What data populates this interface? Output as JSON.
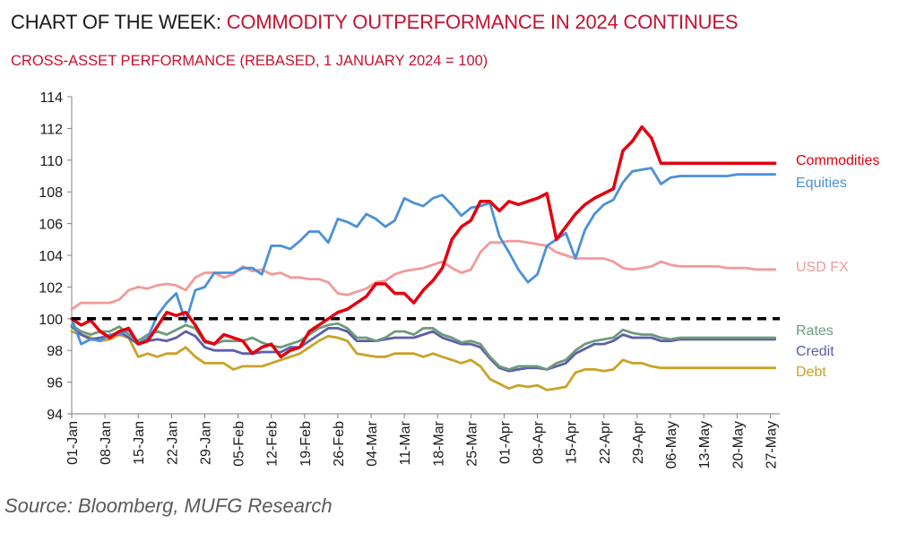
{
  "header": {
    "title_lead": "CHART OF THE WEEK:",
    "title_accent": "COMMODITY OUTPERFORMANCE IN 2024 CONTINUES",
    "subtitle": "CROSS-ASSET PERFORMANCE (REBASED, 1 JANUARY 2024 = 100)"
  },
  "source": "Source: Bloomberg,  MUFG Research",
  "chart_data": {
    "type": "line",
    "x_tick_labels": [
      "01-Jan",
      "08-Jan",
      "15-Jan",
      "22-Jan",
      "29-Jan",
      "05-Feb",
      "12-Feb",
      "19-Feb",
      "26-Feb",
      "04-Mar",
      "11-Mar",
      "18-Mar",
      "25-Mar",
      "01-Apr",
      "08-Apr",
      "15-Apr",
      "22-Apr",
      "29-Apr",
      "06-May",
      "13-May",
      "20-May",
      "27-May"
    ],
    "x_range_days": [
      0,
      149
    ],
    "ylim": [
      94,
      114
    ],
    "y_ticks": [
      94,
      96,
      98,
      100,
      102,
      104,
      106,
      108,
      110,
      112,
      114
    ],
    "grid": false,
    "reference_line": {
      "y": 100,
      "style": "dashed",
      "color": "#000000"
    },
    "x_unit": "days since 01-Jan-2024",
    "series": [
      {
        "name": "Commodities",
        "color": "#e3000f",
        "width": 3.5,
        "x": [
          0,
          2,
          4,
          6,
          8,
          10,
          12,
          14,
          16,
          18,
          20,
          22,
          24,
          26,
          28,
          30,
          32,
          34,
          36,
          38,
          40,
          42,
          44,
          46,
          48,
          50,
          52,
          54,
          56,
          58,
          60,
          62,
          64,
          66,
          68,
          70,
          72,
          74,
          76,
          78,
          80,
          82,
          84,
          86,
          88,
          90,
          92,
          94,
          96,
          98,
          100,
          102,
          104,
          106,
          108,
          110,
          112,
          114,
          116,
          118,
          120,
          122,
          124,
          126,
          128,
          130,
          132,
          134,
          136,
          138,
          140,
          142,
          144,
          146,
          148
        ],
        "y": [
          100,
          99.6,
          99.9,
          99.2,
          98.8,
          99.2,
          99.4,
          98.4,
          98.6,
          99.5,
          100.4,
          100.2,
          100.4,
          99.6,
          98.6,
          98.4,
          99,
          98.8,
          98.6,
          97.8,
          98.2,
          98.4,
          97.6,
          98,
          98.2,
          99.2,
          99.6,
          100,
          100.4,
          100.6,
          101,
          101.4,
          102.2,
          102.2,
          101.6,
          101.6,
          101,
          101.8,
          102.4,
          103.2,
          105,
          105.8,
          106.2,
          107.4,
          107.4,
          106.8,
          107.4,
          107.2,
          107.4,
          107.6,
          107.9,
          105,
          105.8,
          106.6,
          107.2,
          107.6,
          107.9,
          108.2,
          110.6,
          111.2,
          112.1,
          111.4,
          109.8,
          109.8,
          109.8,
          109.8,
          109.8,
          109.8,
          109.8,
          109.8,
          109.8,
          109.8,
          109.8,
          109.8,
          109.8
        ]
      },
      {
        "name": "Equities",
        "color": "#4a90d9",
        "width": 2.8,
        "x": [
          0,
          2,
          4,
          6,
          8,
          10,
          12,
          14,
          16,
          18,
          20,
          22,
          24,
          26,
          28,
          30,
          32,
          34,
          36,
          38,
          40,
          42,
          44,
          46,
          48,
          50,
          52,
          54,
          56,
          58,
          60,
          62,
          64,
          66,
          68,
          70,
          72,
          74,
          76,
          78,
          80,
          82,
          84,
          86,
          88,
          90,
          92,
          94,
          96,
          98,
          100,
          102,
          104,
          106,
          108,
          110,
          112,
          114,
          116,
          118,
          120,
          122,
          124,
          126,
          128,
          130,
          132,
          134,
          136,
          138,
          140,
          142,
          144,
          146,
          148
        ],
        "y": [
          100,
          98.4,
          98.7,
          98.6,
          99,
          99,
          99.3,
          98.4,
          98.8,
          100.2,
          101,
          101.6,
          99.8,
          101.8,
          102,
          102.9,
          102.9,
          102.9,
          103.2,
          103.2,
          102.8,
          104.6,
          104.6,
          104.4,
          104.9,
          105.5,
          105.5,
          104.8,
          106.3,
          106.1,
          105.8,
          106.6,
          106.3,
          105.8,
          106.2,
          107.6,
          107.3,
          107.1,
          107.6,
          107.8,
          107.2,
          106.5,
          107,
          107.1,
          107.3,
          105.2,
          104.2,
          103.1,
          102.3,
          102.8,
          104.6,
          105,
          105.4,
          103.8,
          105.6,
          106.6,
          107.2,
          107.5,
          108.6,
          109.3,
          109.4,
          109.5,
          108.5,
          108.9,
          109,
          109,
          109,
          109,
          109,
          109,
          109.1,
          109.1,
          109.1,
          109.1,
          109.1
        ]
      },
      {
        "name": "USD FX",
        "color": "#f29a9a",
        "width": 2.8,
        "x": [
          0,
          2,
          4,
          6,
          8,
          10,
          12,
          14,
          16,
          18,
          20,
          22,
          24,
          26,
          28,
          30,
          32,
          34,
          36,
          38,
          40,
          42,
          44,
          46,
          48,
          50,
          52,
          54,
          56,
          58,
          60,
          62,
          64,
          66,
          68,
          70,
          72,
          74,
          76,
          78,
          80,
          82,
          84,
          86,
          88,
          90,
          92,
          94,
          96,
          98,
          100,
          102,
          104,
          106,
          108,
          110,
          112,
          114,
          116,
          118,
          120,
          122,
          124,
          126,
          128,
          130,
          132,
          134,
          136,
          138,
          140,
          142,
          144,
          146,
          148
        ],
        "y": [
          100.6,
          101,
          101,
          101,
          101,
          101.2,
          101.8,
          102,
          101.9,
          102.1,
          102.2,
          102.1,
          101.8,
          102.6,
          102.9,
          102.9,
          102.6,
          102.8,
          103.3,
          103,
          103.1,
          102.8,
          102.9,
          102.6,
          102.6,
          102.5,
          102.5,
          102.3,
          101.6,
          101.5,
          101.7,
          101.9,
          102.3,
          102.4,
          102.8,
          103,
          103.1,
          103.2,
          103.4,
          103.6,
          103.2,
          102.9,
          103.1,
          104.2,
          104.8,
          104.8,
          104.9,
          104.9,
          104.8,
          104.7,
          104.6,
          104.2,
          104,
          103.8,
          103.8,
          103.8,
          103.8,
          103.6,
          103.2,
          103.1,
          103.2,
          103.3,
          103.6,
          103.4,
          103.3,
          103.3,
          103.3,
          103.3,
          103.3,
          103.2,
          103.2,
          103.2,
          103.1,
          103.1,
          103.1
        ]
      },
      {
        "name": "Rates",
        "color": "#6f9a7c",
        "width": 2.8,
        "x": [
          0,
          2,
          4,
          6,
          8,
          10,
          12,
          14,
          16,
          18,
          20,
          22,
          24,
          26,
          28,
          30,
          32,
          34,
          36,
          38,
          40,
          42,
          44,
          46,
          48,
          50,
          52,
          54,
          56,
          58,
          60,
          62,
          64,
          66,
          68,
          70,
          72,
          74,
          76,
          78,
          80,
          82,
          84,
          86,
          88,
          90,
          92,
          94,
          96,
          98,
          100,
          102,
          104,
          106,
          108,
          110,
          112,
          114,
          116,
          118,
          120,
          122,
          124,
          126,
          128,
          130,
          132,
          134,
          136,
          138,
          140,
          142,
          144,
          146,
          148
        ],
        "y": [
          99.6,
          99.2,
          99,
          99.2,
          99.2,
          99.5,
          99,
          98.6,
          99,
          99.2,
          99,
          99.3,
          99.6,
          99.4,
          98.5,
          98.4,
          98.6,
          98.6,
          98.6,
          98.8,
          98.5,
          98.3,
          98.2,
          98.4,
          98.6,
          99,
          99.4,
          99.6,
          99.7,
          99.4,
          98.8,
          98.8,
          98.6,
          98.8,
          99.2,
          99.2,
          99,
          99.4,
          99.4,
          99,
          98.8,
          98.5,
          98.6,
          98.4,
          97.6,
          97,
          96.8,
          97,
          97,
          97,
          96.8,
          97.2,
          97.4,
          98,
          98.4,
          98.6,
          98.7,
          98.8,
          99.3,
          99.1,
          99,
          99,
          98.8,
          98.7,
          98.8,
          98.8,
          98.8,
          98.8,
          98.8,
          98.8,
          98.8,
          98.8,
          98.8,
          98.8,
          98.8
        ]
      },
      {
        "name": "Credit",
        "color": "#5b5fa8",
        "width": 2.8,
        "x": [
          0,
          2,
          4,
          6,
          8,
          10,
          12,
          14,
          16,
          18,
          20,
          22,
          24,
          26,
          28,
          30,
          32,
          34,
          36,
          38,
          40,
          42,
          44,
          46,
          48,
          50,
          52,
          54,
          56,
          58,
          60,
          62,
          64,
          66,
          68,
          70,
          72,
          74,
          76,
          78,
          80,
          82,
          84,
          86,
          88,
          90,
          92,
          94,
          96,
          98,
          100,
          102,
          104,
          106,
          108,
          110,
          112,
          114,
          116,
          118,
          120,
          122,
          124,
          126,
          128,
          130,
          132,
          134,
          136,
          138,
          140,
          142,
          144,
          146,
          148
        ],
        "y": [
          99.5,
          99,
          98.7,
          98.8,
          98.9,
          99.2,
          98.8,
          98.4,
          98.6,
          98.7,
          98.6,
          98.8,
          99.2,
          98.9,
          98.2,
          98,
          98,
          98,
          97.8,
          97.8,
          97.9,
          97.9,
          97.9,
          98.2,
          98.2,
          98.6,
          99,
          99.4,
          99.4,
          99.2,
          98.6,
          98.6,
          98.6,
          98.7,
          98.8,
          98.8,
          98.8,
          99,
          99.2,
          98.8,
          98.6,
          98.4,
          98.4,
          98.2,
          97.5,
          96.9,
          96.7,
          96.8,
          96.9,
          96.9,
          96.8,
          97,
          97.2,
          97.8,
          98.1,
          98.4,
          98.4,
          98.6,
          99,
          98.8,
          98.8,
          98.8,
          98.6,
          98.6,
          98.7,
          98.7,
          98.7,
          98.7,
          98.7,
          98.7,
          98.7,
          98.7,
          98.7,
          98.7,
          98.7
        ]
      },
      {
        "name": "Debt",
        "color": "#c9a227",
        "width": 2.8,
        "x": [
          0,
          2,
          4,
          6,
          8,
          10,
          12,
          14,
          16,
          18,
          20,
          22,
          24,
          26,
          28,
          30,
          32,
          34,
          36,
          38,
          40,
          42,
          44,
          46,
          48,
          50,
          52,
          54,
          56,
          58,
          60,
          62,
          64,
          66,
          68,
          70,
          72,
          74,
          76,
          78,
          80,
          82,
          84,
          86,
          88,
          90,
          92,
          94,
          96,
          98,
          100,
          102,
          104,
          106,
          108,
          110,
          112,
          114,
          116,
          118,
          120,
          122,
          124,
          126,
          128,
          130,
          132,
          134,
          136,
          138,
          140,
          142,
          144,
          146,
          148
        ],
        "y": [
          99.2,
          99,
          98.8,
          98.6,
          98.7,
          99,
          98.8,
          97.6,
          97.8,
          97.6,
          97.8,
          97.8,
          98.2,
          97.6,
          97.2,
          97.2,
          97.2,
          96.8,
          97,
          97,
          97,
          97.2,
          97.4,
          97.6,
          97.8,
          98.2,
          98.6,
          98.9,
          98.8,
          98.6,
          97.8,
          97.7,
          97.6,
          97.6,
          97.8,
          97.8,
          97.8,
          97.6,
          97.8,
          97.6,
          97.4,
          97.2,
          97.4,
          97,
          96.2,
          95.9,
          95.6,
          95.8,
          95.7,
          95.8,
          95.5,
          95.6,
          95.7,
          96.6,
          96.8,
          96.8,
          96.7,
          96.8,
          97.4,
          97.2,
          97.2,
          97,
          96.9,
          96.9,
          96.9,
          96.9,
          96.9,
          96.9,
          96.9,
          96.9,
          96.9,
          96.9,
          96.9,
          96.9,
          96.9
        ]
      }
    ]
  }
}
